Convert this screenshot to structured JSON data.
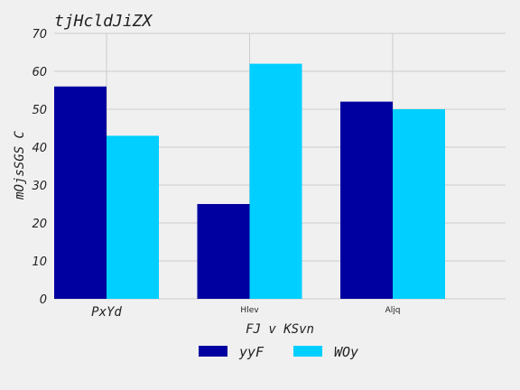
{
  "chart_data": {
    "type": "bar",
    "title": "tjHcldJiZX",
    "xlabel": "FJ v KSvn",
    "ylabel": "mOjsSGS C",
    "categories": [
      "PxYd",
      "Hlev",
      "Aljq"
    ],
    "series": [
      {
        "name": "yyF",
        "values": [
          56,
          25,
          52
        ],
        "color": "#0000a0"
      },
      {
        "name": "WOy",
        "values": [
          43,
          62,
          50
        ],
        "color": "#00cfff"
      }
    ],
    "ylim": [
      0,
      70
    ],
    "yticks": [
      0,
      10,
      20,
      30,
      40,
      50,
      60,
      70
    ],
    "grid": true,
    "legend": "bottom-center"
  }
}
